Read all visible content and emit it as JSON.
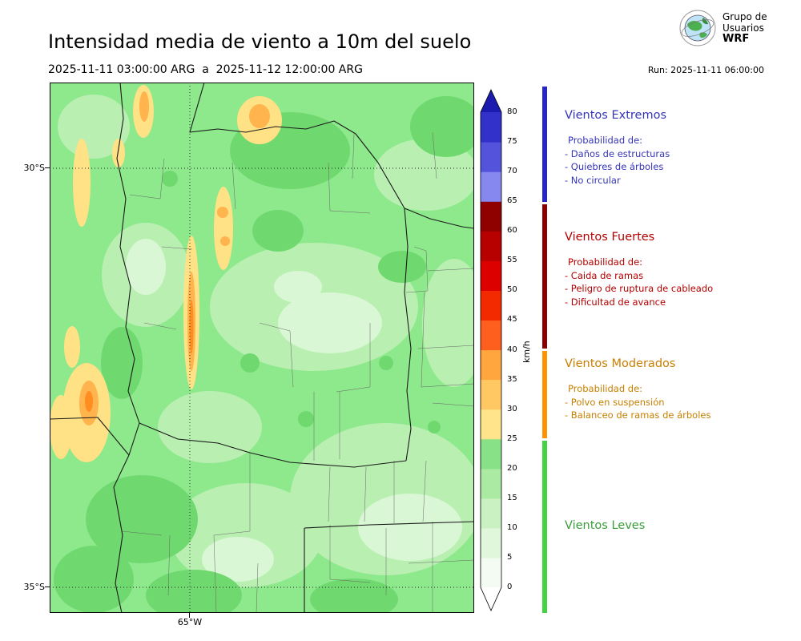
{
  "header": {
    "title": "Intensidad media de viento a 10m del suelo",
    "date_range": "2025-11-11 03:00:00 ARG  a  2025-11-12 12:00:00 ARG",
    "run": "Run: 2025-11-11 06:00:00",
    "logo": {
      "line1": "Grupo de",
      "line2": "Usuarios",
      "line3": "WRF"
    }
  },
  "map": {
    "lat_ticks": [
      "30°S",
      "35°S"
    ],
    "lon_ticks": [
      "65°W"
    ]
  },
  "colorbar": {
    "unit": "km/h",
    "ticks_top_to_bottom": [
      80,
      75,
      70,
      65,
      60,
      55,
      50,
      45,
      40,
      35,
      30,
      25,
      20,
      15,
      10,
      5,
      0
    ],
    "segment_colors_bottom_to_top": [
      "#f4fbf2",
      "#e1f7dc",
      "#c9f1c2",
      "#aaeaa3",
      "#88e187",
      "#ffe48c",
      "#ffc863",
      "#ffa63e",
      "#ff5f1e",
      "#f32a00",
      "#dd0000",
      "#b70000",
      "#8f0000",
      "#8787f0",
      "#5353dc",
      "#3232cb"
    ],
    "over_color": "#1b1bb0",
    "under_color": "#ffffff"
  },
  "legend": {
    "sections": [
      {
        "title": "Vientos Extremos",
        "color": "#3434b8",
        "bar_color": "#2626cc",
        "items": [
          "Probabilidad de:",
          "- Daños de estructuras",
          "- Quiebres de árboles",
          "- No circular"
        ]
      },
      {
        "title": "Vientos Fuertes",
        "color": "#b30000",
        "bar_color": "#8b0000",
        "items": [
          "Probabilidad de:",
          "- Caida de ramas",
          "- Peligro de ruptura de cableado",
          "- Dificultad de avance"
        ]
      },
      {
        "title": "Vientos Moderados",
        "color": "#c87f00",
        "bar_color": "#ff9300",
        "items": [
          "Probabilidad de:",
          "- Polvo en suspensión",
          "- Balanceo de ramas de árboles"
        ]
      },
      {
        "title": "Vientos Leves",
        "color": "#3a9e3a",
        "bar_color": "#41d341",
        "items": []
      }
    ]
  }
}
